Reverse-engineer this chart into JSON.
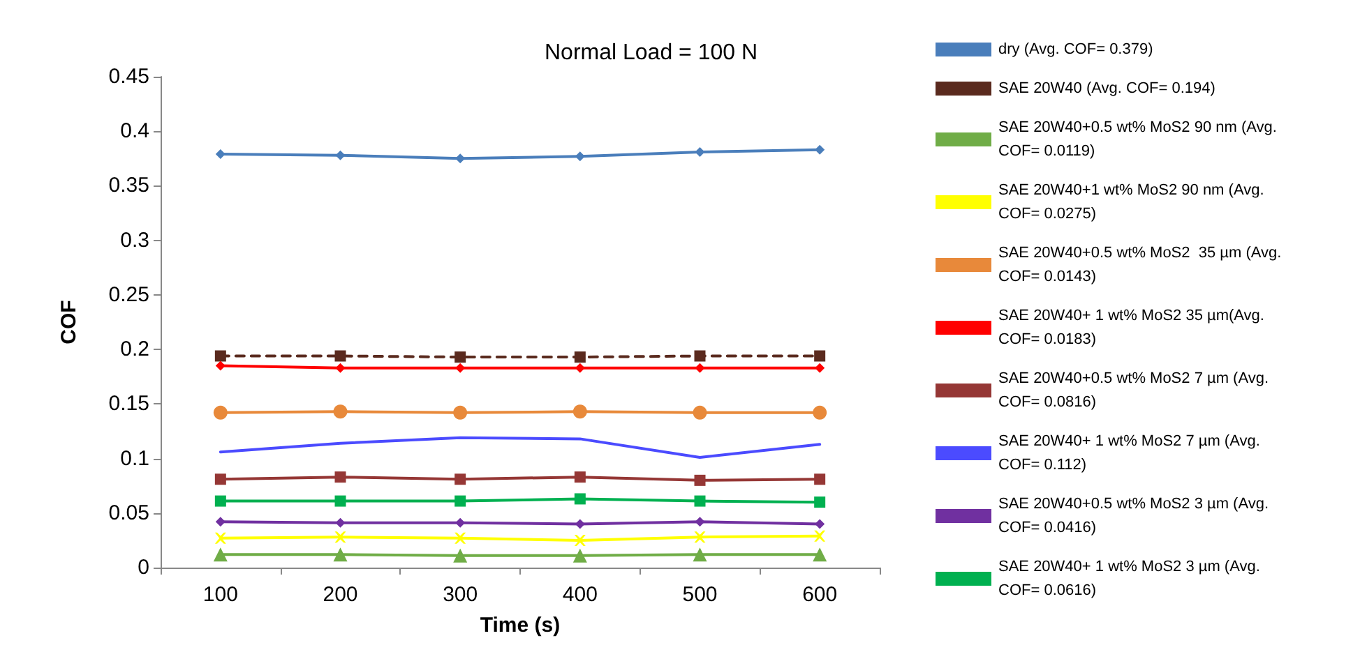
{
  "chart_data": {
    "type": "line",
    "xlabel": "Time (s)",
    "ylabel": "COF",
    "annotations": [
      "Normal Load = 100 N"
    ],
    "categories": [
      "100",
      "200",
      "300",
      "400",
      "500",
      "600"
    ],
    "ylim": [
      0,
      0.45
    ],
    "yticks": [
      0,
      0.05,
      0.1,
      0.15,
      0.2,
      0.25,
      0.3,
      0.35,
      0.4,
      0.45
    ],
    "grid": false,
    "legend": "right",
    "series": [
      {
        "name": "dry (Avg. COF= 0.379)",
        "color": "#4a7ebb",
        "marker": "diamond",
        "values": [
          0.379,
          0.378,
          0.375,
          0.377,
          0.381,
          0.383
        ]
      },
      {
        "name": "SAE 20W40 (Avg. COF= 0.194)",
        "color": "#5a2a1e",
        "marker": "square",
        "line_style": "dashed",
        "values": [
          0.194,
          0.194,
          0.193,
          0.193,
          0.194,
          0.194
        ]
      },
      {
        "name": "SAE 20W40+0.5 wt% MoS2 90 nm (Avg. COF= 0.0119)",
        "color": "#70ad47",
        "marker": "triangle",
        "values": [
          0.012,
          0.012,
          0.011,
          0.011,
          0.012,
          0.012
        ]
      },
      {
        "name": "SAE 20W40+1 wt% MoS2 90 nm (Avg. COF= 0.0275)",
        "color": "#ffff00",
        "marker": "cross",
        "values": [
          0.027,
          0.028,
          0.027,
          0.025,
          0.028,
          0.029
        ]
      },
      {
        "name": "SAE 20W40+0.5 wt% MoS2  35 µm (Avg. COF= 0.0143)",
        "color": "#e8893a",
        "marker": "circle",
        "values": [
          0.142,
          0.143,
          0.142,
          0.143,
          0.142,
          0.142
        ]
      },
      {
        "name": "SAE 20W40+ 1 wt% MoS2 35 µm(Avg. COF= 0.0183)",
        "color": "#ff0000",
        "marker": "diamond",
        "values": [
          0.185,
          0.183,
          0.183,
          0.183,
          0.183,
          0.183
        ]
      },
      {
        "name": "SAE 20W40+0.5 wt% MoS2 7 µm (Avg. COF= 0.0816)",
        "color": "#953735",
        "marker": "square",
        "values": [
          0.081,
          0.083,
          0.081,
          0.083,
          0.08,
          0.081
        ]
      },
      {
        "name": "SAE 20W40+ 1 wt% MoS2 7 µm (Avg. COF= 0.112)",
        "color": "#4b4bff",
        "marker": "none",
        "values": [
          0.106,
          0.114,
          0.119,
          0.118,
          0.101,
          0.113
        ]
      },
      {
        "name": "SAE 20W40+0.5 wt% MoS2 3 µm (Avg. COF= 0.0416)",
        "color": "#7030a0",
        "marker": "diamond",
        "values": [
          0.042,
          0.041,
          0.041,
          0.04,
          0.042,
          0.04
        ]
      },
      {
        "name": "SAE 20W40+ 1 wt% MoS2 3 µm (Avg. COF= 0.0616)",
        "color": "#00b050",
        "marker": "square",
        "values": [
          0.061,
          0.061,
          0.061,
          0.063,
          0.061,
          0.06
        ]
      }
    ]
  }
}
